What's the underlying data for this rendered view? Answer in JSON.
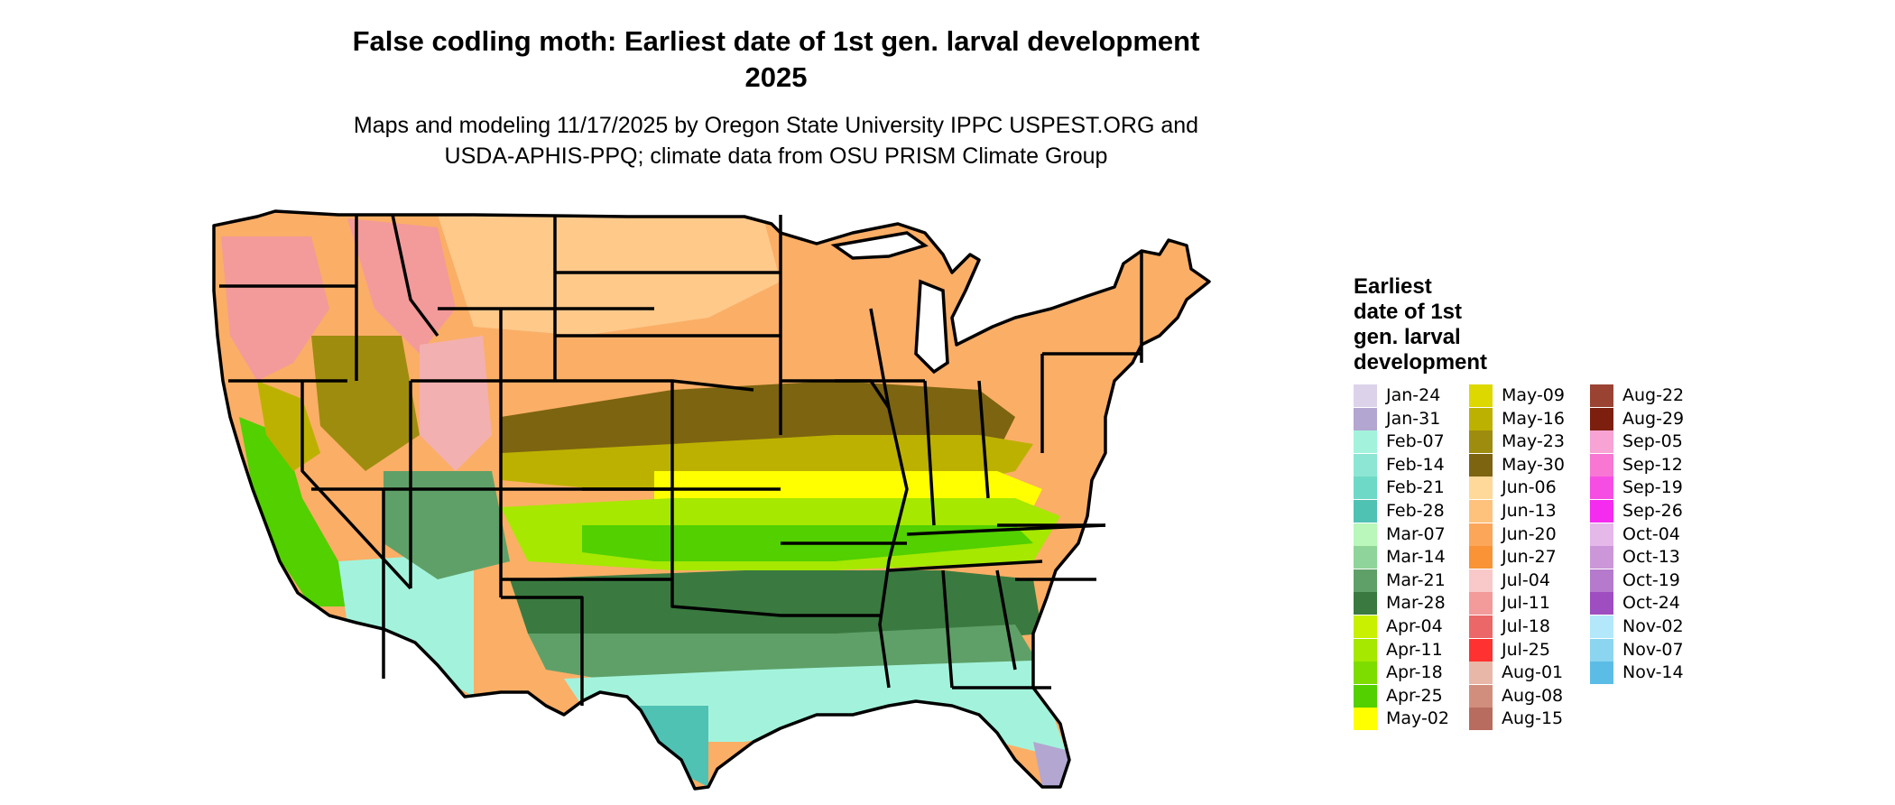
{
  "header": {
    "title_line1": "False codling moth: Earliest date of 1st gen. larval development",
    "title_line2": "2025",
    "subtitle_line1": "Maps and modeling 11/17/2025 by Oregon State University IPPC USPEST.ORG and",
    "subtitle_line2": "USDA-APHIS-PPQ; climate data from OSU PRISM Climate Group"
  },
  "legend": {
    "title_lines": [
      "Earliest",
      "date of 1st",
      "gen. larval",
      "development"
    ],
    "columns": [
      [
        {
          "label": "Jan-24",
          "color": "#dcd3ea"
        },
        {
          "label": "Jan-31",
          "color": "#b3a6d0"
        },
        {
          "label": "Feb-07",
          "color": "#a3f3dc"
        },
        {
          "label": "Feb-14",
          "color": "#8de6d3"
        },
        {
          "label": "Feb-21",
          "color": "#6fd9c7"
        },
        {
          "label": "Feb-28",
          "color": "#4fc2b4"
        },
        {
          "label": "Mar-07",
          "color": "#b9f7bb"
        },
        {
          "label": "Mar-14",
          "color": "#8fd49a"
        },
        {
          "label": "Mar-21",
          "color": "#5fa068"
        },
        {
          "label": "Mar-28",
          "color": "#3a7a40"
        },
        {
          "label": "Apr-04",
          "color": "#c8f000"
        },
        {
          "label": "Apr-11",
          "color": "#a6e800"
        },
        {
          "label": "Apr-18",
          "color": "#7edd00"
        },
        {
          "label": "Apr-25",
          "color": "#52d000"
        },
        {
          "label": "May-02",
          "color": "#ffff00"
        }
      ],
      [
        {
          "label": "May-09",
          "color": "#ddd800"
        },
        {
          "label": "May-16",
          "color": "#bdb100"
        },
        {
          "label": "May-23",
          "color": "#9e8c0e"
        },
        {
          "label": "May-30",
          "color": "#7c6410"
        },
        {
          "label": "Jun-06",
          "color": "#ffd999"
        },
        {
          "label": "Jun-13",
          "color": "#ffc27d"
        },
        {
          "label": "Jun-20",
          "color": "#fca65a"
        },
        {
          "label": "Jun-27",
          "color": "#f99335"
        },
        {
          "label": "Jul-04",
          "color": "#f9c8c8"
        },
        {
          "label": "Jul-11",
          "color": "#f39a9a"
        },
        {
          "label": "Jul-18",
          "color": "#ec6767"
        },
        {
          "label": "Jul-25",
          "color": "#ff3131"
        },
        {
          "label": "Aug-01",
          "color": "#e8b7a8"
        },
        {
          "label": "Aug-08",
          "color": "#d28e7d"
        },
        {
          "label": "Aug-15",
          "color": "#b86b5f"
        }
      ],
      [
        {
          "label": "Aug-22",
          "color": "#9b4333"
        },
        {
          "label": "Aug-29",
          "color": "#7c1f0f"
        },
        {
          "label": "Sep-05",
          "color": "#f7a4d4"
        },
        {
          "label": "Sep-12",
          "color": "#f777d3"
        },
        {
          "label": "Sep-19",
          "color": "#f64ee3"
        },
        {
          "label": "Sep-26",
          "color": "#f52cf0"
        },
        {
          "label": "Oct-04",
          "color": "#e4b8e9"
        },
        {
          "label": "Oct-13",
          "color": "#cb97d8"
        },
        {
          "label": "Oct-19",
          "color": "#b57acc"
        },
        {
          "label": "Oct-24",
          "color": "#9e4ec0"
        },
        {
          "label": "Nov-02",
          "color": "#b2e8f9"
        },
        {
          "label": "Nov-07",
          "color": "#8cd5f0"
        },
        {
          "label": "Nov-14",
          "color": "#5bbde6"
        }
      ]
    ]
  },
  "map_colors": {
    "land_orange": "#fbae66",
    "pale_orange": "#ffc98a",
    "pink": "#f39a9a",
    "olive_dark": "#7c6410",
    "olive": "#bdb100",
    "yellow": "#ffff00",
    "green_light": "#a6e800",
    "green": "#52d000",
    "green_dark": "#3a7a40",
    "green_mid": "#5fa068",
    "mint": "#a3f3dc",
    "teal": "#4fc2b4",
    "lavender": "#b3a6d0",
    "border": "#000000"
  }
}
